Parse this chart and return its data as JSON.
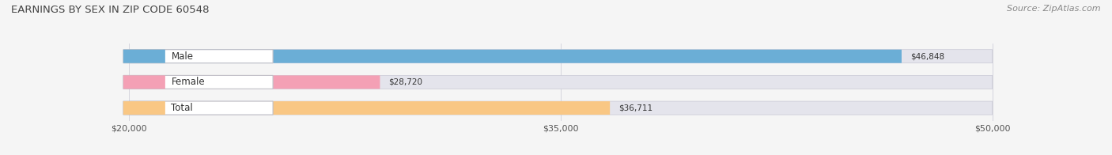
{
  "title": "EARNINGS BY SEX IN ZIP CODE 60548",
  "source": "Source: ZipAtlas.com",
  "categories": [
    "Male",
    "Female",
    "Total"
  ],
  "values": [
    46848,
    28720,
    36711
  ],
  "bar_colors": [
    "#6baed6",
    "#f4a0b5",
    "#f9c784"
  ],
  "value_labels": [
    "$46,848",
    "$28,720",
    "$36,711"
  ],
  "xmin": 20000,
  "xmax": 50000,
  "xticks": [
    20000,
    35000,
    50000
  ],
  "xtick_labels": [
    "$20,000",
    "$35,000",
    "$50,000"
  ],
  "background_color": "#f5f5f5",
  "bar_bg_color": "#e4e4ec",
  "title_fontsize": 9.5,
  "source_fontsize": 8,
  "bar_height": 0.52
}
